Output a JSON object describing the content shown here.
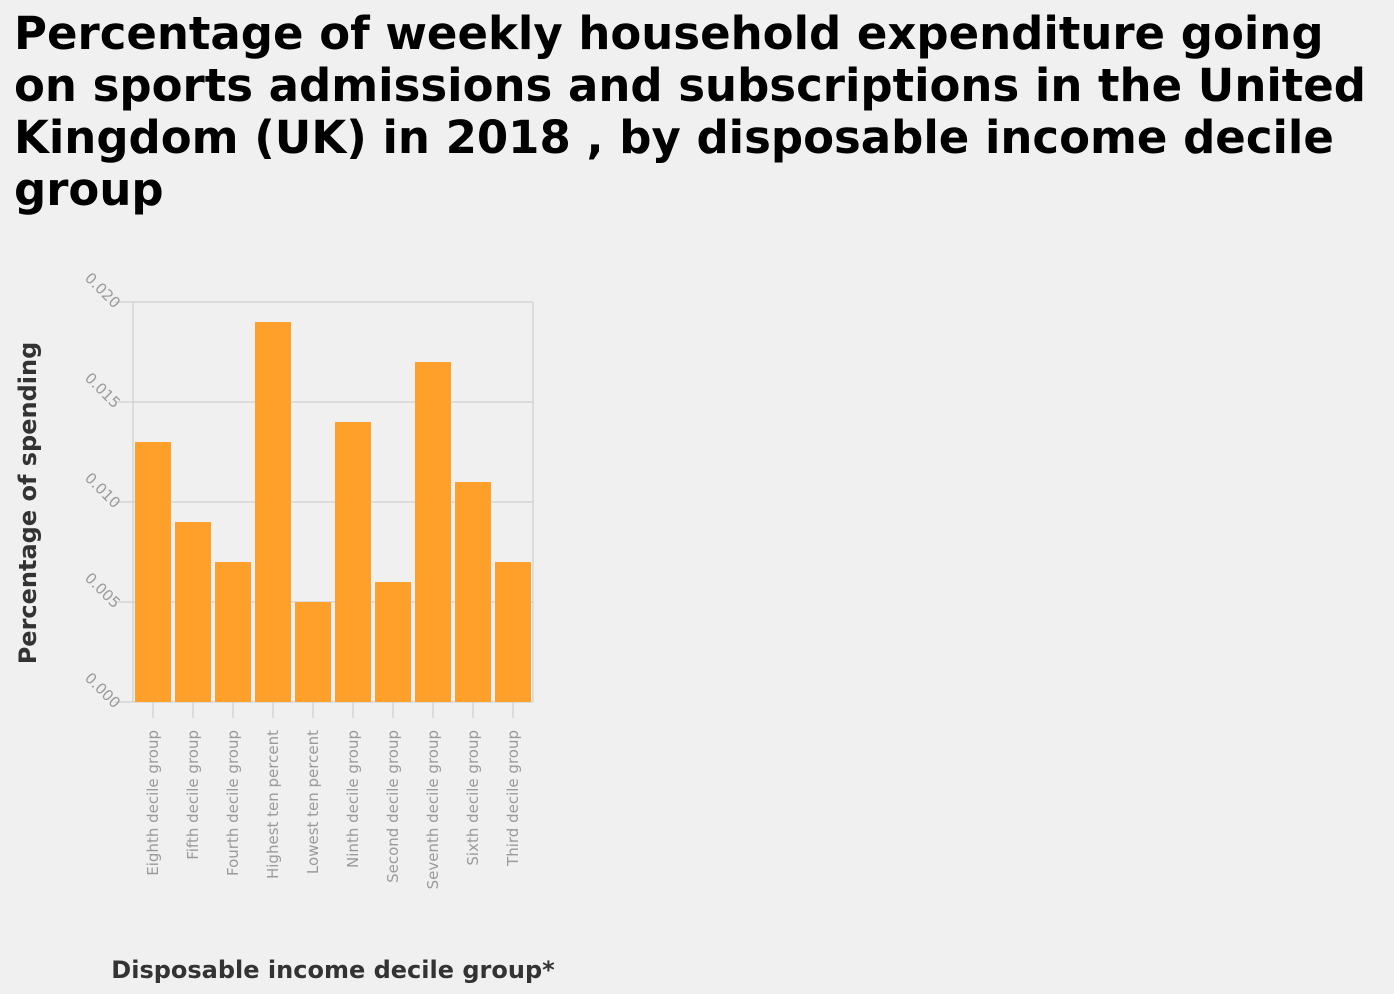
{
  "chart_data": {
    "type": "bar",
    "title": "Percentage of weekly household expenditure going on sports admissions and subscriptions in the United Kingdom (UK) in 2018 , by disposable income decile group",
    "xlabel": "Disposable income decile group*",
    "ylabel": "Percentage of spending",
    "categories": [
      "Eighth decile group",
      "Fifth decile group",
      "Fourth decile group",
      "Highest ten percent",
      "Lowest ten percent",
      "Ninth decile group",
      "Second decile group",
      "Seventh decile group",
      "Sixth decile group",
      "Third decile group"
    ],
    "values": [
      0.013,
      0.009,
      0.007,
      0.019,
      0.005,
      0.014,
      0.006,
      0.017,
      0.011,
      0.007
    ],
    "ylim": [
      0,
      0.02
    ],
    "yticks": [
      "0.000",
      "0.005",
      "0.010",
      "0.015",
      "0.020"
    ],
    "grid": true,
    "legend": "none",
    "colors": {
      "bar": "#ffa02a",
      "grid": "#c8c8c8",
      "tick_label": "#9a9a9a",
      "axis_label": "#333333"
    }
  }
}
